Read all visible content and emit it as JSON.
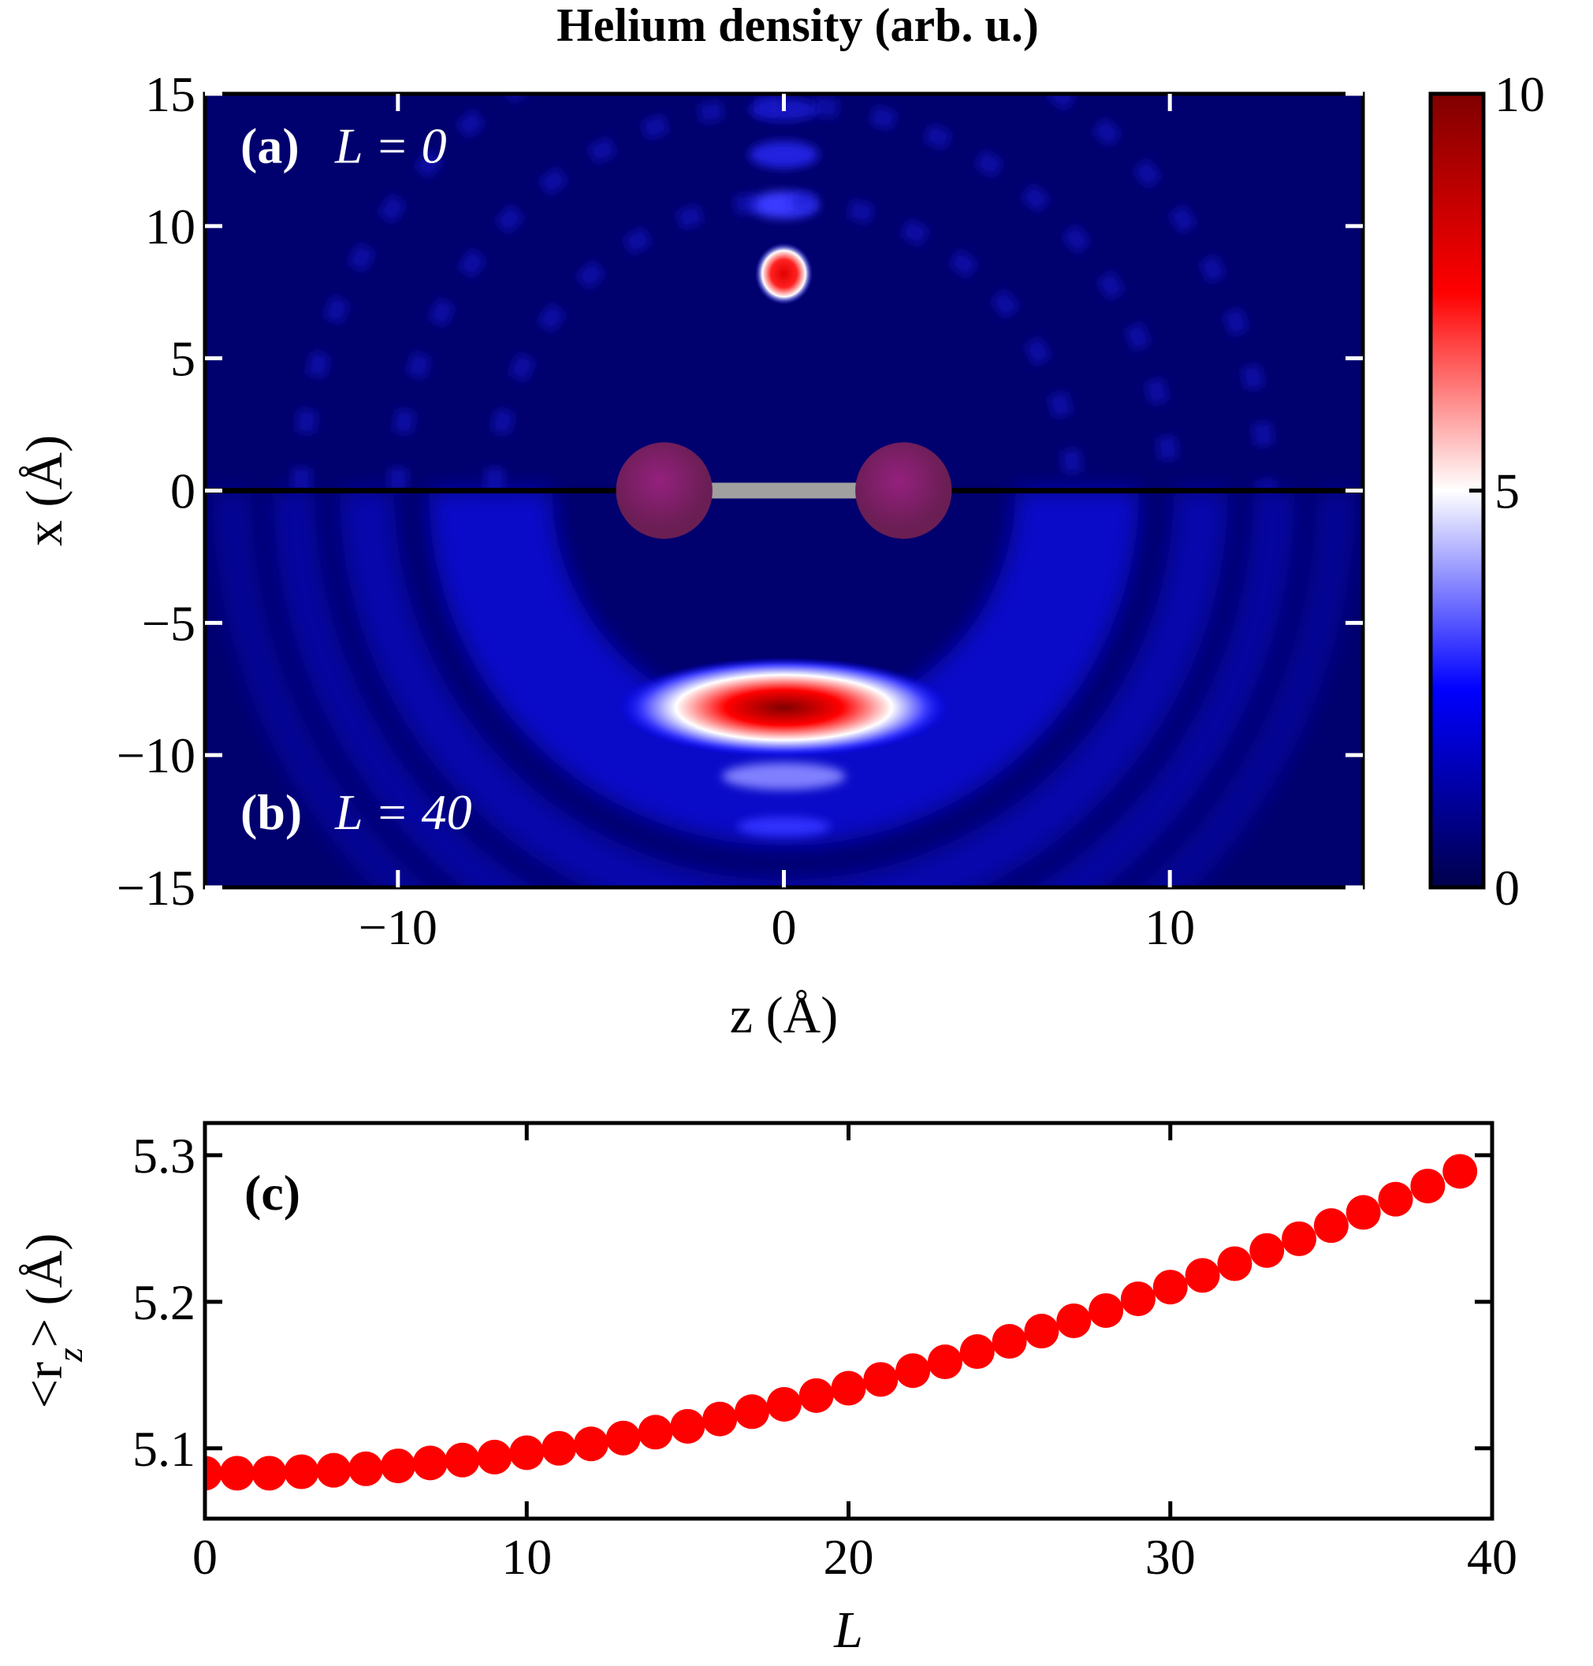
{
  "chart_data": [
    {
      "type": "heatmap",
      "title": "Helium density (arb. u.)",
      "xlabel": "z (Å)",
      "ylabel": "x (Å)",
      "xlim": [
        -15,
        15
      ],
      "ylim": [
        -15,
        15
      ],
      "xticks": [
        {
          "value": -10,
          "label": "−10"
        },
        0,
        10
      ],
      "yticks": [
        {
          "value": -15,
          "label": "−15"
        },
        {
          "value": -10,
          "label": "−10"
        },
        {
          "value": -5,
          "label": "−5"
        },
        0,
        5,
        10,
        15
      ],
      "colormap": "seismic",
      "clim": [
        0,
        10
      ],
      "cticks": [
        0,
        5,
        10
      ],
      "annotations": [
        {
          "tag": "(a)",
          "text": "L = 0"
        },
        {
          "tag": "(b)",
          "text": "L = 40"
        }
      ]
    },
    {
      "type": "scatter",
      "label": "(c)",
      "xlabel": "L",
      "ylabel": {
        "pre": "<r",
        "sub": "z",
        "post": "> (Å)"
      },
      "color": "#ff0000",
      "x": [
        0,
        1,
        2,
        3,
        4,
        5,
        6,
        7,
        8,
        9,
        10,
        11,
        12,
        13,
        14,
        15,
        16,
        17,
        18,
        19,
        20,
        21,
        22,
        23,
        24,
        25,
        26,
        27,
        28,
        29,
        30,
        31,
        32,
        33,
        34,
        35,
        36,
        37,
        38,
        39
      ],
      "values": [
        5.083,
        5.083,
        5.083,
        5.084,
        5.085,
        5.086,
        5.088,
        5.09,
        5.092,
        5.094,
        5.097,
        5.1,
        5.103,
        5.107,
        5.111,
        5.115,
        5.12,
        5.125,
        5.13,
        5.136,
        5.141,
        5.147,
        5.153,
        5.159,
        5.166,
        5.173,
        5.18,
        5.187,
        5.194,
        5.202,
        5.21,
        5.218,
        5.226,
        5.235,
        5.243,
        5.252,
        5.261,
        5.27,
        5.279,
        5.289
      ],
      "xlim": [
        0,
        40
      ],
      "ylim": [
        5.052,
        5.322
      ],
      "xticks": [
        0,
        10,
        20,
        30,
        40
      ],
      "yticks": [
        5.1,
        5.2,
        5.3
      ]
    }
  ]
}
